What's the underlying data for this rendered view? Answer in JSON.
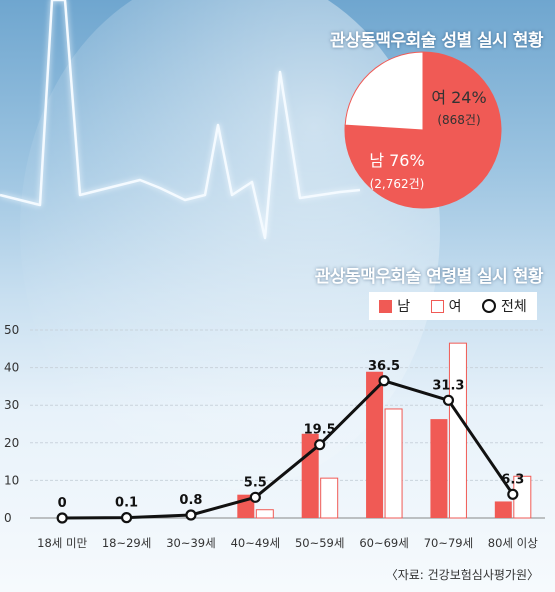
{
  "pie_title": "관상동맥우회술 성별 실시 현황",
  "bar_title": "관상동맥우회술 연령별 실시 현황",
  "source": "〈자료: 건강보험심사평가원〉",
  "colors": {
    "male": "#f05a55",
    "female": "#ffffff",
    "total": "#111111"
  },
  "chart_data": [
    {
      "type": "pie",
      "title": "관상동맥우회술 성별 실시 현황",
      "slices": [
        {
          "label": "남",
          "percent": 76,
          "percent_label": "76%",
          "count_label": "(2,762건)",
          "count": 2762,
          "color": "#f05a55"
        },
        {
          "label": "여",
          "percent": 24,
          "percent_label": "24%",
          "count_label": "(868건)",
          "count": 868,
          "color": "#ffffff"
        }
      ]
    },
    {
      "type": "bar",
      "title": "관상동맥우회술 연령별 실시 현황",
      "categories": [
        "18세 미만",
        "18~29세",
        "30~39세",
        "40~49세",
        "50~59세",
        "60~69세",
        "70~79세",
        "80세 이상"
      ],
      "ylim": [
        0,
        50
      ],
      "yticks": [
        0,
        10,
        20,
        30,
        40,
        50
      ],
      "legend_position": "top-right",
      "series": [
        {
          "name": "남",
          "kind": "bar",
          "color": "#f05a55",
          "values": [
            0,
            0,
            0,
            6.2,
            22.4,
            38.9,
            26.3,
            4.4
          ]
        },
        {
          "name": "여",
          "kind": "bar",
          "color": "#ffffff",
          "values": [
            0,
            0,
            0,
            2.2,
            10.6,
            29.0,
            46.5,
            11.1
          ]
        },
        {
          "name": "전체",
          "kind": "line",
          "color": "#111111",
          "values": [
            0,
            0.1,
            0.8,
            5.5,
            19.5,
            36.5,
            31.3,
            6.3
          ],
          "labels": [
            "0",
            "0.1",
            "0.8",
            "5.5",
            "19.5",
            "36.5",
            "31.3",
            "6.3"
          ]
        }
      ]
    }
  ]
}
